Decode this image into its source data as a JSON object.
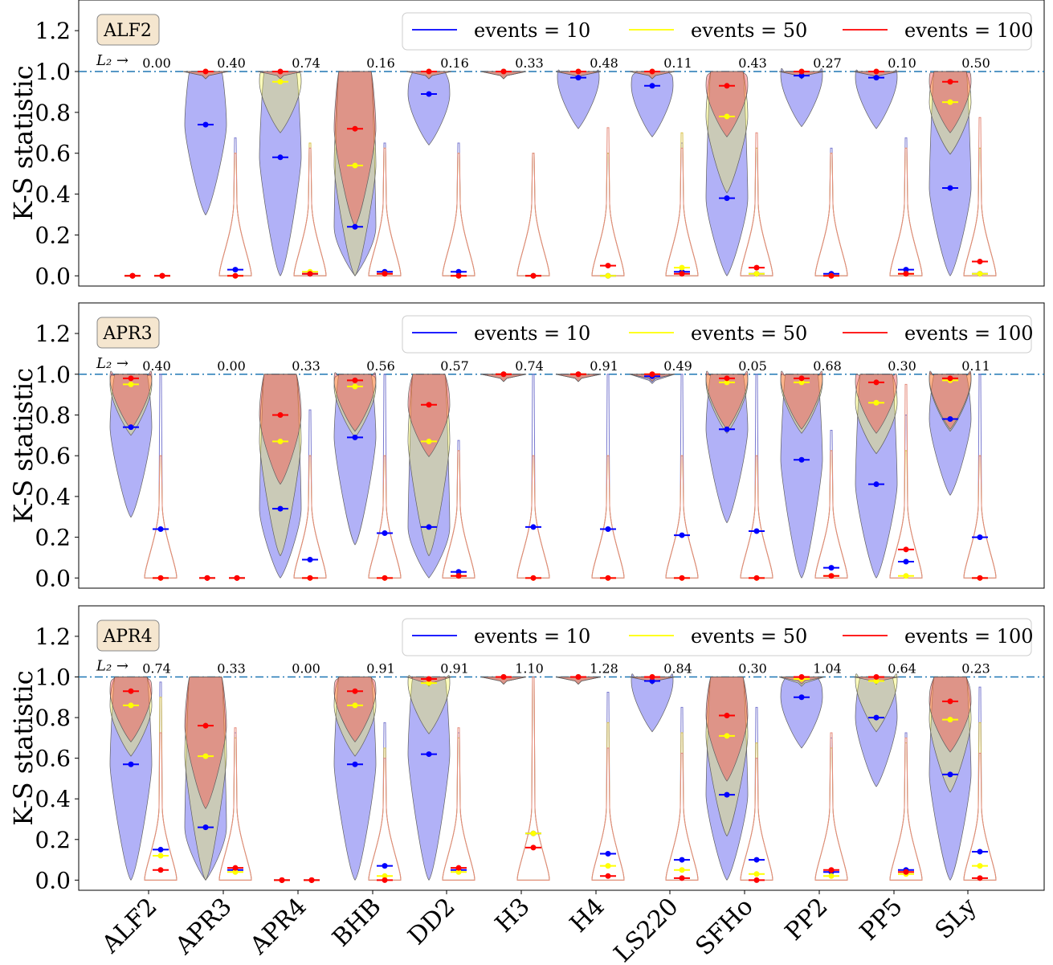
{
  "chart_data": {
    "type": "violin",
    "categories": [
      "ALF2",
      "APR3",
      "APR4",
      "BHB",
      "DD2",
      "H3",
      "H4",
      "LS220",
      "SFHo",
      "PP2",
      "PP5",
      "SLy"
    ],
    "ylabel": "K-S statistic",
    "ylim": [
      -0.05,
      1.35
    ],
    "yticks": [
      "0.0",
      "0.2",
      "0.4",
      "0.6",
      "0.8",
      "1.0",
      "1.2"
    ],
    "reference_line": 1.0,
    "legend": [
      "events = 10",
      "events = 50",
      "events = 100"
    ],
    "legend_placement": "top-right",
    "series_colors": {
      "events = 10": "#0000ff",
      "events = 50": "#ffff00",
      "events = 100": "#ff0000"
    },
    "l2_prefix": "L₂ →",
    "panels": [
      {
        "label": "ALF2",
        "l2": [
          "0.00",
          "0.40",
          "0.74",
          "0.16",
          "0.16",
          "0.33",
          "0.48",
          "0.11",
          "0.43",
          "0.27",
          "0.10",
          "0.50"
        ],
        "left_median": {
          "events = 10": [
            0.0,
            0.74,
            0.58,
            0.24,
            0.89,
            1.0,
            0.97,
            0.93,
            0.38,
            0.98,
            0.97,
            0.43
          ],
          "events = 50": [
            0.0,
            1.0,
            0.95,
            0.54,
            1.0,
            1.0,
            1.0,
            1.0,
            0.78,
            1.0,
            1.0,
            0.85
          ],
          "events = 100": [
            0.0,
            1.0,
            1.0,
            0.72,
            1.0,
            1.0,
            1.0,
            1.0,
            0.93,
            1.0,
            1.0,
            0.95
          ]
        },
        "right_median": {
          "events = 10": [
            0.0,
            0.03,
            0.01,
            0.02,
            0.02,
            0.0,
            0.0,
            0.02,
            0.01,
            0.01,
            0.03,
            0.01
          ],
          "events = 50": [
            0.0,
            0.0,
            0.02,
            0.01,
            0.0,
            0.0,
            0.0,
            0.04,
            0.01,
            0.0,
            0.01,
            0.01
          ],
          "events = 100": [
            0.0,
            0.0,
            0.01,
            0.01,
            0.0,
            0.0,
            0.05,
            0.01,
            0.04,
            0.0,
            0.01,
            0.07
          ]
        }
      },
      {
        "label": "APR3",
        "l2": [
          "0.40",
          "0.00",
          "0.33",
          "0.56",
          "0.57",
          "0.74",
          "0.91",
          "0.49",
          "0.05",
          "0.68",
          "0.30",
          "0.11"
        ],
        "left_median": {
          "events = 10": [
            0.74,
            0.0,
            0.34,
            0.69,
            0.25,
            1.0,
            1.0,
            0.99,
            0.73,
            0.58,
            0.46,
            0.78
          ],
          "events = 50": [
            0.95,
            0.0,
            0.67,
            0.94,
            0.67,
            1.0,
            1.0,
            1.0,
            0.96,
            0.96,
            0.86,
            0.97
          ],
          "events = 100": [
            0.98,
            0.0,
            0.8,
            0.97,
            0.85,
            1.0,
            1.0,
            1.0,
            0.98,
            0.98,
            0.96,
            0.98
          ]
        },
        "right_median": {
          "events = 10": [
            0.24,
            0.0,
            0.09,
            0.22,
            0.03,
            0.25,
            0.24,
            0.21,
            0.23,
            0.05,
            0.08,
            0.2
          ],
          "events = 50": [
            0.0,
            0.0,
            0.0,
            0.0,
            0.01,
            0.0,
            0.0,
            0.0,
            0.0,
            0.01,
            0.01,
            0.0
          ],
          "events = 100": [
            0.0,
            0.0,
            0.0,
            0.0,
            0.01,
            0.0,
            0.0,
            0.0,
            0.0,
            0.01,
            0.14,
            0.0
          ]
        }
      },
      {
        "label": "APR4",
        "l2": [
          "0.74",
          "0.33",
          "0.00",
          "0.91",
          "0.91",
          "1.10",
          "1.28",
          "0.84",
          "0.30",
          "1.04",
          "0.64",
          "0.23"
        ],
        "left_median": {
          "events = 10": [
            0.57,
            0.26,
            0.0,
            0.57,
            0.62,
            1.0,
            1.0,
            0.98,
            0.42,
            0.9,
            0.8,
            0.52
          ],
          "events = 50": [
            0.86,
            0.61,
            0.0,
            0.86,
            0.97,
            1.0,
            1.0,
            1.0,
            0.71,
            0.99,
            0.98,
            0.79
          ],
          "events = 100": [
            0.93,
            0.76,
            0.0,
            0.93,
            0.99,
            1.0,
            1.0,
            1.0,
            0.81,
            1.0,
            1.0,
            0.88
          ]
        },
        "right_median": {
          "events = 10": [
            0.15,
            0.05,
            0.0,
            0.07,
            0.05,
            0.23,
            0.13,
            0.1,
            0.1,
            0.04,
            0.05,
            0.14
          ],
          "events = 50": [
            0.12,
            0.04,
            0.0,
            0.02,
            0.04,
            0.23,
            0.07,
            0.05,
            0.03,
            0.02,
            0.03,
            0.07
          ],
          "events = 100": [
            0.05,
            0.06,
            0.0,
            0.0,
            0.06,
            0.16,
            0.02,
            0.01,
            0.0,
            0.05,
            0.04,
            0.01
          ]
        }
      }
    ]
  }
}
